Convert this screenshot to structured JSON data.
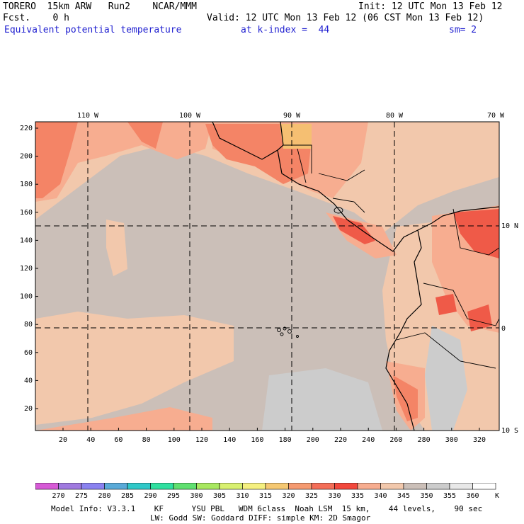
{
  "header": {
    "model": "TORERO  15km ARW   Run2    NCAR/MMM",
    "init": "Init: 12 UTC Mon 13 Feb 12",
    "fcst": "Fcst.    0 h",
    "valid": "Valid: 12 UTC Mon 13 Feb 12 (06 CST Mon 13 Feb 12)",
    "field": "Equivalent potential temperature",
    "level": "at k-index =  44",
    "smoothing": "sm= 2"
  },
  "map": {
    "lon_labels": [
      "110 W",
      "100 W",
      "90 W",
      "80 W",
      "70 W"
    ],
    "lat_labels": [
      "10 N",
      "0",
      "10 S"
    ],
    "y_ticks": [
      "220",
      "200",
      "180",
      "160",
      "140",
      "120",
      "100",
      "80",
      "60",
      "40",
      "20"
    ],
    "x_ticks": [
      "20",
      "40",
      "60",
      "80",
      "100",
      "120",
      "140",
      "160",
      "180",
      "200",
      "220",
      "240",
      "260",
      "280",
      "300",
      "320"
    ],
    "colors": {
      "background_field": "#cbbfb8",
      "warm_340": "#f2c8ac",
      "warm_335": "#f7ad90",
      "warm_330": "#f48466",
      "warm_325": "#ef5a48",
      "warm_320": "#f5bf72",
      "cool_350": "#cccccc"
    }
  },
  "legend": {
    "values": [
      "270",
      "275",
      "280",
      "285",
      "290",
      "295",
      "300",
      "305",
      "310",
      "315",
      "320",
      "325",
      "330",
      "335",
      "340",
      "345",
      "350",
      "355",
      "360"
    ],
    "unit": "K",
    "colors": [
      "#d65ad6",
      "#a07ae0",
      "#8a82f0",
      "#5aaad8",
      "#30c8c8",
      "#30e0a0",
      "#60e070",
      "#a8e860",
      "#d8f070",
      "#f5f080",
      "#f5c872",
      "#f59a70",
      "#f46e58",
      "#f2483c",
      "#f7ad90",
      "#f2c8ac",
      "#cbbfb8",
      "#cccccc",
      "#e8e8e8",
      "#ffffff"
    ]
  },
  "footer": {
    "line1": "Model Info: V3.3.1    KF      YSU PBL   WDM 6class  Noah LSM  15 km,    44 levels,    90 sec",
    "line2": "LW: Godd SW: Goddard DIFF: simple KM: 2D Smagor"
  }
}
